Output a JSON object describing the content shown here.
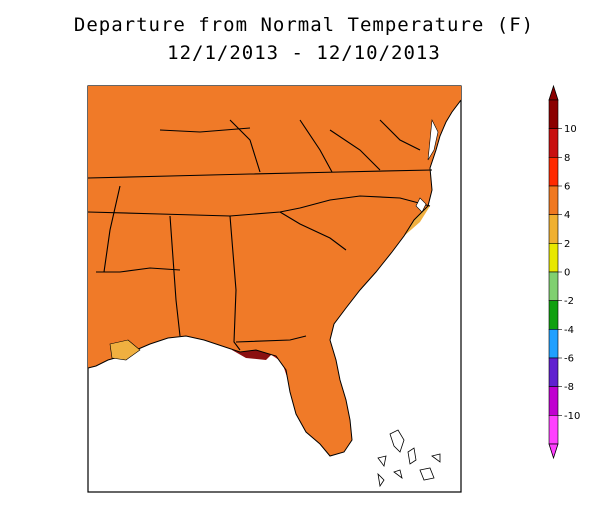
{
  "title": {
    "line1": "Departure from Normal Temperature (F)",
    "line2": "12/1/2013 - 12/10/2013"
  },
  "legend": {
    "ticks": [
      "10",
      "8",
      "6",
      "4",
      "2",
      "0",
      "-2",
      "-4",
      "-6",
      "-8",
      "-10"
    ],
    "colors_top_to_bottom": [
      "#8b0000",
      "#c81010",
      "#ff2a00",
      "#f07820",
      "#f0b030",
      "#e8e800",
      "#80d070",
      "#10a010",
      "#20a0ff",
      "#6020d0",
      "#c000d0",
      "#ff40ff"
    ]
  },
  "map_colors": {
    "ocean": "#ffffff",
    "dark_red": "#8b1010",
    "red": "#cc1a10",
    "red_orange": "#ff3010",
    "orange": "#f07a28",
    "light_orange": "#f0b040",
    "yellow": "#e8e800",
    "light_green": "#80cc60",
    "green": "#20a020",
    "blue": "#30a0ff",
    "purple": "#7030d0",
    "boundary": "#000000"
  }
}
